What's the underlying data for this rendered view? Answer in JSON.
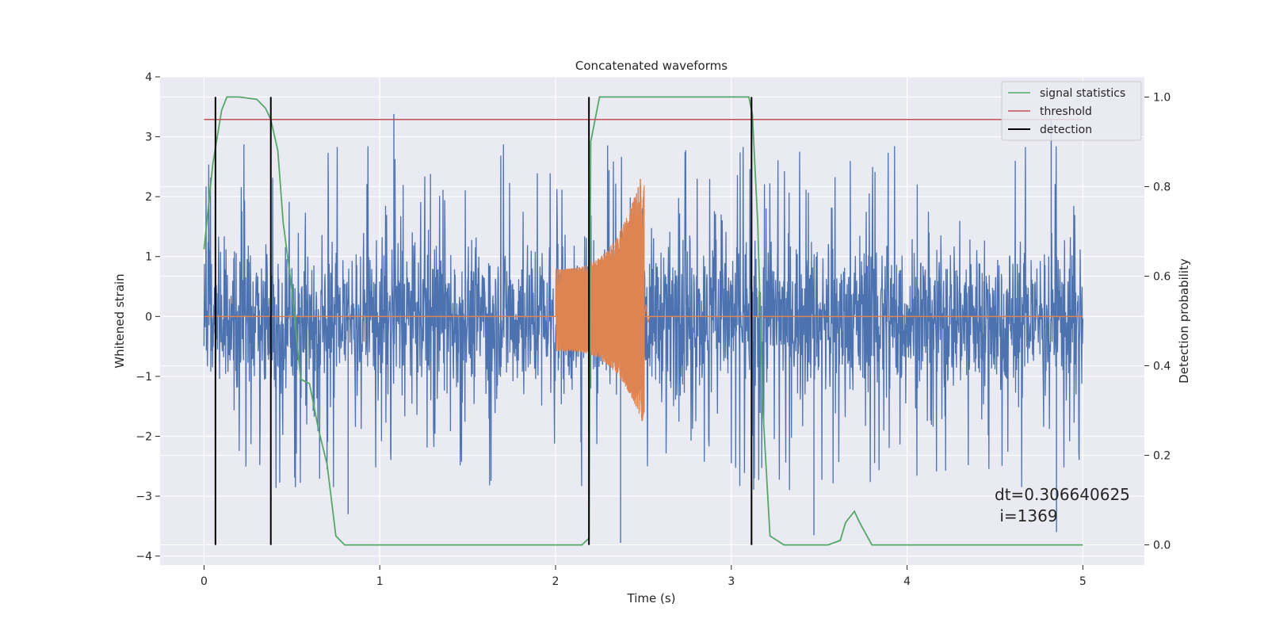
{
  "chart_data": {
    "type": "line",
    "title": "Concatenated waveforms",
    "xlabel": "Time (s)",
    "ylabel": "Whitened strain",
    "y2label": "Detection probability",
    "xlim": [
      -0.25,
      5.35
    ],
    "ylim": [
      -4.15,
      4.0
    ],
    "y2lim": [
      -0.045,
      1.045
    ],
    "xticks": [
      0,
      1,
      2,
      3,
      4,
      5
    ],
    "yticks": [
      -4,
      -3,
      -2,
      -1,
      0,
      1,
      2,
      3,
      4
    ],
    "y2ticks": [
      0.0,
      0.2,
      0.4,
      0.6,
      0.8,
      1.0
    ],
    "xtick_labels": [
      "0",
      "1",
      "2",
      "3",
      "4",
      "5"
    ],
    "ytick_labels": [
      "−4",
      "−3",
      "−2",
      "−1",
      "0",
      "1",
      "2",
      "3",
      "4"
    ],
    "y2tick_labels": [
      "0.0",
      "0.2",
      "0.4",
      "0.6",
      "0.8",
      "1.0"
    ],
    "grid": true,
    "legend_position": "top-right",
    "colors": {
      "background": "#eaeaf2",
      "noise": "#4c72b0",
      "injection": "#dd8452",
      "signal_statistics": "#55a868",
      "threshold": "#c44e52",
      "detection": "#000000"
    },
    "series": [
      {
        "name": "signal statistics",
        "axis": "right",
        "x": [
          0.0,
          0.05,
          0.1,
          0.13,
          0.2,
          0.3,
          0.35,
          0.38,
          0.42,
          0.45,
          0.5,
          0.55,
          0.6,
          0.62,
          0.63,
          0.65,
          0.7,
          0.75,
          0.8,
          2.15,
          2.19,
          2.2,
          2.25,
          3.1,
          3.12,
          3.15,
          3.18,
          3.22,
          3.3,
          3.55,
          3.62,
          3.65,
          3.7,
          3.73,
          3.8,
          3.9,
          5.0
        ],
        "values": [
          0.66,
          0.85,
          0.97,
          1.0,
          1.0,
          0.995,
          0.975,
          0.95,
          0.88,
          0.72,
          0.57,
          0.37,
          0.36,
          0.32,
          0.3,
          0.26,
          0.18,
          0.02,
          0.0,
          0.0,
          0.015,
          0.9,
          1.0,
          1.0,
          0.96,
          0.72,
          0.3,
          0.02,
          0.0,
          0.0,
          0.01,
          0.05,
          0.075,
          0.05,
          0.0,
          0.0,
          0.0
        ]
      },
      {
        "name": "threshold",
        "axis": "right",
        "x": [
          0.0,
          5.0
        ],
        "values": [
          0.95,
          0.95
        ]
      },
      {
        "name": "detection",
        "axis": "right",
        "type": "vlines",
        "x": [
          0.065,
          0.38,
          2.19,
          3.115
        ],
        "ymin": 0.0,
        "ymax": 1.0
      },
      {
        "name": "",
        "axis": "left",
        "type": "noise",
        "x_range": [
          0.0,
          5.0
        ],
        "spread_envelope": 0.85,
        "peak_max": 3.38,
        "peak_min": -3.78
      },
      {
        "name": "",
        "axis": "left",
        "type": "chirp",
        "x_range": [
          2.0,
          2.505
        ],
        "amplitude_start": 0.8,
        "amplitude_peak": 2.55,
        "amplitude_min": -1.85
      }
    ],
    "annotations": [
      "dt=0.306640625",
      " i=1369"
    ]
  }
}
